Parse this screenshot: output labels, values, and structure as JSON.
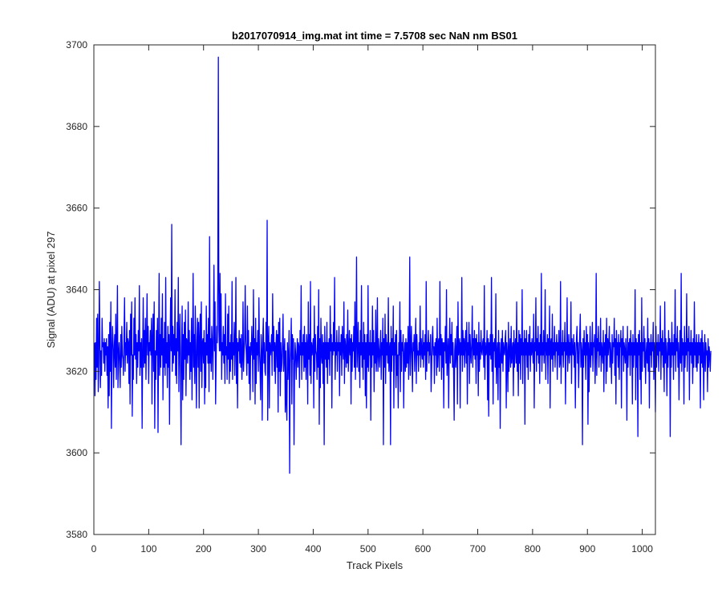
{
  "chart_data": {
    "type": "line",
    "title": "b2017070914_img.mat int time = 7.5708 sec  NaN nm BS01",
    "xlabel": "Track Pixels",
    "ylabel": "Signal (ADU) at pixel 297",
    "xlim": [
      0,
      1024
    ],
    "ylim": [
      3580,
      3700
    ],
    "xticks": [
      0,
      100,
      200,
      300,
      400,
      500,
      600,
      700,
      800,
      900,
      1000
    ],
    "yticks": [
      3580,
      3600,
      3620,
      3640,
      3660,
      3680,
      3700
    ],
    "grid": false,
    "box": true,
    "series": [
      {
        "color": "#0000ff",
        "x_start": 1,
        "x_step": 1,
        "values": [
          3627,
          3614,
          3627,
          3618,
          3633,
          3621,
          3634,
          3615,
          3622,
          3642,
          3628,
          3616,
          3625,
          3619,
          3633,
          3626,
          3627,
          3622,
          3628,
          3620,
          3627,
          3624,
          3628,
          3619,
          3626,
          3611,
          3629,
          3614,
          3632,
          3620,
          3637,
          3606,
          3625,
          3631,
          3627,
          3616,
          3625,
          3629,
          3621,
          3634,
          3618,
          3627,
          3641,
          3616,
          3624,
          3627,
          3622,
          3616,
          3629,
          3621,
          3631,
          3624,
          3623,
          3619,
          3629,
          3638,
          3620,
          3627,
          3624,
          3632,
          3622,
          3628,
          3627,
          3617,
          3630,
          3612,
          3634,
          3624,
          3637,
          3609,
          3624,
          3618,
          3633,
          3624,
          3638,
          3623,
          3629,
          3617,
          3627,
          3621,
          3630,
          3625,
          3641,
          3619,
          3627,
          3621,
          3628,
          3606,
          3625,
          3638,
          3621,
          3630,
          3622,
          3633,
          3618,
          3628,
          3639,
          3624,
          3631,
          3617,
          3627,
          3625,
          3630,
          3624,
          3633,
          3612,
          3628,
          3634,
          3620,
          3637,
          3606,
          3625,
          3618,
          3630,
          3624,
          3633,
          3605,
          3626,
          3644,
          3619,
          3629,
          3621,
          3633,
          3624,
          3639,
          3613,
          3628,
          3621,
          3632,
          3619,
          3643,
          3622,
          3627,
          3616,
          3631,
          3621,
          3629,
          3607,
          3627,
          3638,
          3625,
          3656,
          3620,
          3631,
          3622,
          3629,
          3624,
          3640,
          3619,
          3628,
          3617,
          3632,
          3625,
          3643,
          3615,
          3627,
          3634,
          3620,
          3602,
          3626,
          3636,
          3613,
          3629,
          3618,
          3632,
          3623,
          3635,
          3614,
          3628,
          3627,
          3622,
          3637,
          3624,
          3630,
          3618,
          3627,
          3620,
          3633,
          3613,
          3626,
          3644,
          3621,
          3629,
          3617,
          3636,
          3624,
          3611,
          3627,
          3633,
          3621,
          3632,
          3611,
          3628,
          3634,
          3620,
          3637,
          3616,
          3627,
          3628,
          3622,
          3630,
          3612,
          3627,
          3616,
          3636,
          3624,
          3629,
          3622,
          3633,
          3615,
          3653,
          3622,
          3628,
          3620,
          3631,
          3627,
          3618,
          3629,
          3646,
          3625,
          3637,
          3612,
          3623,
          3631,
          3627,
          3641,
          3697,
          3630,
          3625,
          3644,
          3625,
          3639,
          3618,
          3627,
          3624,
          3631,
          3622,
          3629,
          3617,
          3639,
          3624,
          3626,
          3618,
          3634,
          3623,
          3636,
          3617,
          3627,
          3620,
          3629,
          3623,
          3642,
          3618,
          3627,
          3624,
          3632,
          3619,
          3626,
          3643,
          3617,
          3628,
          3611,
          3627,
          3625,
          3630,
          3622,
          3628,
          3621,
          3629,
          3618,
          3623,
          3637,
          3620,
          3625,
          3628,
          3641,
          3627,
          3624,
          3619,
          3636,
          3622,
          3630,
          3617,
          3626,
          3613,
          3627,
          3624,
          3631,
          3626,
          3615,
          3640,
          3623,
          3628,
          3612,
          3633,
          3617,
          3627,
          3624,
          3630,
          3620,
          3638,
          3625,
          3621,
          3613,
          3629,
          3625,
          3608,
          3628,
          3633,
          3622,
          3627,
          3620,
          3619,
          3632,
          3625,
          3657,
          3608,
          3626,
          3631,
          3611,
          3627,
          3624,
          3626,
          3629,
          3619,
          3639,
          3625,
          3631,
          3620,
          3627,
          3617,
          3626,
          3630,
          3621,
          3629,
          3610,
          3632,
          3620,
          3633,
          3614,
          3627,
          3620,
          3622,
          3627,
          3634,
          3620,
          3624,
          3628,
          3610,
          3625,
          3612,
          3608,
          3627,
          3618,
          3624,
          3630,
          3595,
          3622,
          3626,
          3633,
          3612,
          3629,
          3623,
          3628,
          3602,
          3621,
          3627,
          3624,
          3618,
          3624,
          3628,
          3621,
          3627,
          3626,
          3616,
          3630,
          3624,
          3641,
          3618,
          3627,
          3624,
          3629,
          3620,
          3631,
          3621,
          3627,
          3618,
          3629,
          3626,
          3612,
          3637,
          3623,
          3629,
          3619,
          3642,
          3617,
          3627,
          3624,
          3626,
          3628,
          3611,
          3636,
          3620,
          3629,
          3625,
          3624,
          3618,
          3631,
          3621,
          3640,
          3607,
          3628,
          3616,
          3633,
          3624,
          3622,
          3629,
          3617,
          3627,
          3602,
          3631,
          3623,
          3627,
          3621,
          3632,
          3617,
          3627,
          3623,
          3628,
          3619,
          3636,
          3625,
          3629,
          3611,
          3627,
          3624,
          3632,
          3625,
          3643,
          3618,
          3627,
          3624,
          3630,
          3620,
          3627,
          3625,
          3631,
          3614,
          3627,
          3624,
          3629,
          3619,
          3631,
          3626,
          3623,
          3637,
          3617,
          3628,
          3626,
          3621,
          3629,
          3622,
          3635,
          3620,
          3625,
          3630,
          3624,
          3628,
          3612,
          3629,
          3620,
          3627,
          3625,
          3631,
          3621,
          3637,
          3618,
          3627,
          3648,
          3621,
          3626,
          3632,
          3620,
          3627,
          3616,
          3630,
          3624,
          3641,
          3621,
          3627,
          3618,
          3632,
          3623,
          3629,
          3614,
          3627,
          3611,
          3629,
          3621,
          3641,
          3620,
          3627,
          3624,
          3630,
          3608,
          3627,
          3621,
          3636,
          3624,
          3630,
          3615,
          3627,
          3622,
          3635,
          3620,
          3624,
          3638,
          3620,
          3628,
          3625,
          3621,
          3626,
          3630,
          3618,
          3627,
          3624,
          3633,
          3602,
          3628,
          3621,
          3634,
          3617,
          3629,
          3624,
          3627,
          3622,
          3638,
          3620,
          3625,
          3627,
          3602,
          3631,
          3620,
          3628,
          3624,
          3636,
          3611,
          3627,
          3624,
          3629,
          3616,
          3630,
          3619,
          3624,
          3611,
          3627,
          3624,
          3637,
          3615,
          3630,
          3620,
          3627,
          3625,
          3629,
          3611,
          3624,
          3627,
          3620,
          3628,
          3621,
          3627,
          3622,
          3631,
          3618,
          3625,
          3648,
          3619,
          3625,
          3631,
          3624,
          3615,
          3627,
          3625,
          3629,
          3620,
          3627,
          3633,
          3617,
          3629,
          3624,
          3625,
          3620,
          3627,
          3624,
          3636,
          3621,
          3628,
          3625,
          3623,
          3630,
          3621,
          3627,
          3624,
          3629,
          3618,
          3642,
          3620,
          3627,
          3625,
          3630,
          3622,
          3627,
          3624,
          3629,
          3615,
          3621,
          3628,
          3631,
          3624,
          3626,
          3617,
          3627,
          3624,
          3628,
          3619,
          3633,
          3621,
          3627,
          3628,
          3620,
          3642,
          3624,
          3629,
          3618,
          3628,
          3621,
          3627,
          3611,
          3627,
          3625,
          3631,
          3622,
          3640,
          3619,
          3624,
          3628,
          3611,
          3626,
          3633,
          3622,
          3629,
          3624,
          3632,
          3621,
          3627,
          3620,
          3608,
          3625,
          3628,
          3621,
          3625,
          3631,
          3612,
          3637,
          3624,
          3626,
          3628,
          3611,
          3627,
          3624,
          3643,
          3620,
          3630,
          3624,
          3628,
          3621,
          3627,
          3630,
          3622,
          3632,
          3612,
          3627,
          3624,
          3632,
          3617,
          3629,
          3625,
          3622,
          3627,
          3636,
          3621,
          3628,
          3624,
          3630,
          3623,
          3628,
          3617,
          3629,
          3624,
          3627,
          3614,
          3632,
          3620,
          3627,
          3623,
          3630,
          3625,
          3624,
          3627,
          3628,
          3621,
          3641,
          3618,
          3627,
          3624,
          3625,
          3630,
          3613,
          3628,
          3609,
          3627,
          3624,
          3629,
          3623,
          3643,
          3620,
          3629,
          3612,
          3627,
          3625,
          3628,
          3621,
          3639,
          3617,
          3624,
          3627,
          3613,
          3630,
          3621,
          3627,
          3606,
          3624,
          3628,
          3622,
          3630,
          3620,
          3627,
          3625,
          3624,
          3628,
          3630,
          3611,
          3627,
          3624,
          3615,
          3632,
          3620,
          3625,
          3628,
          3621,
          3631,
          3622,
          3625,
          3627,
          3614,
          3630,
          3621,
          3626,
          3628,
          3622,
          3637,
          3620,
          3627,
          3614,
          3630,
          3622,
          3629,
          3618,
          3628,
          3624,
          3640,
          3617,
          3627,
          3624,
          3630,
          3607,
          3628,
          3624,
          3630,
          3621,
          3627,
          3618,
          3629,
          3624,
          3631,
          3620,
          3627,
          3624,
          3628,
          3625,
          3622,
          3634,
          3611,
          3627,
          3625,
          3638,
          3620,
          3628,
          3624,
          3631,
          3622,
          3627,
          3617,
          3629,
          3624,
          3644,
          3620,
          3627,
          3624,
          3630,
          3622,
          3626,
          3640,
          3618,
          3627,
          3624,
          3629,
          3617,
          3628,
          3624,
          3636,
          3611,
          3627,
          3628,
          3623,
          3634,
          3620,
          3627,
          3624,
          3631,
          3621,
          3627,
          3625,
          3629,
          3618,
          3627,
          3624,
          3630,
          3621,
          3622,
          3642,
          3617,
          3627,
          3624,
          3630,
          3621,
          3627,
          3625,
          3632,
          3612,
          3627,
          3624,
          3638,
          3620,
          3625,
          3629,
          3622,
          3627,
          3624,
          3637,
          3617,
          3628,
          3625,
          3624,
          3629,
          3621,
          3627,
          3611,
          3624,
          3628,
          3631,
          3622,
          3627,
          3616,
          3624,
          3629,
          3634,
          3621,
          3627,
          3625,
          3602,
          3628,
          3621,
          3630,
          3624,
          3627,
          3618,
          3631,
          3624,
          3629,
          3607,
          3627,
          3615,
          3625,
          3631,
          3621,
          3627,
          3624,
          3632,
          3620,
          3627,
          3626,
          3629,
          3617,
          3624,
          3644,
          3619,
          3628,
          3625,
          3631,
          3621,
          3627,
          3624,
          3633,
          3620,
          3627,
          3625,
          3622,
          3630,
          3615,
          3627,
          3624,
          3629,
          3617,
          3633,
          3620,
          3628,
          3624,
          3627,
          3631,
          3621,
          3627,
          3624,
          3617,
          3629,
          3622,
          3627,
          3626,
          3633,
          3619,
          3628,
          3612,
          3630,
          3624,
          3627,
          3621,
          3629,
          3618,
          3627,
          3626,
          3630,
          3611,
          3628,
          3624,
          3631,
          3620,
          3627,
          3625,
          3622,
          3628,
          3624,
          3608,
          3631,
          3621,
          3627,
          3624,
          3628,
          3619,
          3630,
          3624,
          3627,
          3612,
          3629,
          3621,
          3627,
          3624,
          3640,
          3613,
          3628,
          3621,
          3627,
          3604,
          3629,
          3624,
          3630,
          3618,
          3627,
          3612,
          3638,
          3620,
          3627,
          3625,
          3631,
          3621,
          3628,
          3617,
          3624,
          3627,
          3622,
          3633,
          3620,
          3628,
          3611,
          3627,
          3624,
          3629,
          3621,
          3627,
          3625,
          3632,
          3618,
          3627,
          3624,
          3610,
          3631,
          3621,
          3627,
          3624,
          3629,
          3620,
          3627,
          3625,
          3636,
          3618,
          3628,
          3624,
          3630,
          3621,
          3627,
          3615,
          3637,
          3622,
          3628,
          3624,
          3614,
          3627,
          3621,
          3630,
          3624,
          3628,
          3604,
          3627,
          3621,
          3632,
          3624,
          3627,
          3618,
          3629,
          3624,
          3640,
          3620,
          3628,
          3625,
          3631,
          3621,
          3627,
          3613,
          3624,
          3630,
          3622,
          3644,
          3620,
          3628,
          3624,
          3627,
          3612,
          3631,
          3621,
          3627,
          3624,
          3639,
          3620,
          3628,
          3625,
          3631,
          3613,
          3627,
          3624,
          3630,
          3622,
          3627,
          3617,
          3628,
          3621,
          3637,
          3624,
          3627,
          3621,
          3629,
          3620,
          3627,
          3622,
          3629,
          3624,
          3627,
          3611,
          3628,
          3622,
          3630,
          3621,
          3627,
          3613,
          3624,
          3629,
          3620,
          3627,
          3624,
          3625,
          3615,
          3628,
          3621,
          3626,
          3624,
          3620,
          3625
        ]
      }
    ]
  }
}
